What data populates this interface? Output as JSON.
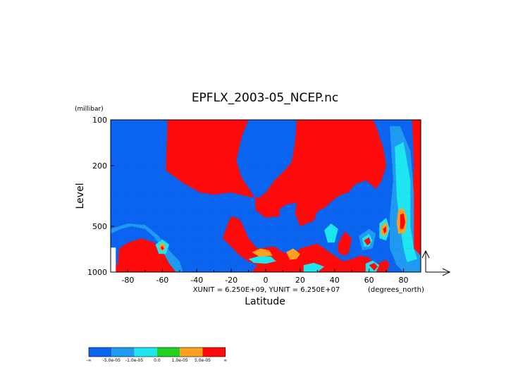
{
  "chart_data": {
    "type": "heatmap",
    "title": "EPFLX_2003-05_NCEP.nc",
    "xlabel": "Latitude",
    "ylabel": "Level",
    "y_unit_label": "(millibar)",
    "x_unit_label": "(degrees_north)",
    "scale_note": "XUNIT = 6.250E+09, YUNIT = 6.250E+07",
    "x_ticks": [
      -80,
      -60,
      -40,
      -20,
      0,
      20,
      40,
      60,
      80
    ],
    "x_tick_labels": [
      "-80",
      "-60",
      "-40",
      "-20",
      "0",
      "20",
      "40",
      "60",
      "80"
    ],
    "y_ticks": [
      100,
      200,
      500,
      1000
    ],
    "y_tick_labels": [
      "100",
      "200",
      "500",
      "1000"
    ],
    "xlim": [
      -90,
      90
    ],
    "ylim": [
      1000,
      100
    ],
    "y_scale": "log",
    "colors": {
      "dark_blue": "#0a64f0",
      "mid_blue": "#1e9bf0",
      "cyan": "#1ee6f0",
      "green": "#1ed21e",
      "orange": "#ffa01e",
      "red": "#ff0a0a"
    },
    "legend": {
      "placement": "bottom-left",
      "colors": [
        "#0a64f0",
        "#1e9bf0",
        "#1ee6f0",
        "#1ed21e",
        "#ffa01e",
        "#ff0a0a"
      ],
      "labels": [
        "-∞",
        "-5.0e-05",
        "-1.0e-05",
        "0.0",
        "1.0e-05",
        "5.0e-05",
        "∞"
      ]
    },
    "regions": [
      {
        "name": "red-main",
        "color": "red",
        "points": [
          [
            -57,
            100
          ],
          [
            -10,
            100
          ],
          [
            -14,
            130
          ],
          [
            -17,
            185
          ],
          [
            -14,
            240
          ],
          [
            -10,
            280
          ],
          [
            -6,
            330
          ],
          [
            -6,
            390
          ],
          [
            0,
            440
          ],
          [
            8,
            430
          ],
          [
            8,
            385
          ],
          [
            12,
            360
          ],
          [
            18,
            350
          ],
          [
            17,
            410
          ],
          [
            20,
            500
          ],
          [
            28,
            460
          ],
          [
            30,
            400
          ],
          [
            34,
            380
          ],
          [
            40,
            330
          ],
          [
            44,
            310
          ],
          [
            48,
            300
          ],
          [
            52,
            265
          ],
          [
            58,
            250
          ],
          [
            62,
            270
          ],
          [
            64,
            285
          ],
          [
            67,
            255
          ],
          [
            70,
            200
          ],
          [
            68,
            150
          ],
          [
            64,
            110
          ],
          [
            62,
            100
          ],
          [
            18,
            100
          ],
          [
            17,
            140
          ],
          [
            15,
            190
          ],
          [
            11,
            215
          ],
          [
            5,
            250
          ],
          [
            0,
            300
          ],
          [
            -4,
            325
          ],
          [
            -10,
            320
          ],
          [
            -20,
            300
          ],
          [
            -30,
            310
          ],
          [
            -38,
            300
          ],
          [
            -48,
            260
          ],
          [
            -58,
            215
          ]
        ]
      },
      {
        "name": "red-lower-middle",
        "color": "red",
        "points": [
          [
            -20,
            430
          ],
          [
            -15,
            450
          ],
          [
            -10,
            600
          ],
          [
            -5,
            700
          ],
          [
            5,
            680
          ],
          [
            8,
            720
          ],
          [
            15,
            780
          ],
          [
            20,
            700
          ],
          [
            30,
            650
          ],
          [
            40,
            780
          ],
          [
            45,
            850
          ],
          [
            50,
            820
          ],
          [
            55,
            780
          ],
          [
            60,
            800
          ],
          [
            62,
            850
          ],
          [
            65,
            880
          ],
          [
            70,
            830
          ],
          [
            72,
            900
          ],
          [
            70,
            1000
          ],
          [
            -8,
            1000
          ],
          [
            -5,
            900
          ],
          [
            -10,
            850
          ],
          [
            -15,
            780
          ],
          [
            -18,
            720
          ],
          [
            -25,
            600
          ],
          [
            -22,
            480
          ]
        ]
      },
      {
        "name": "red-lower-left",
        "color": "red",
        "points": [
          [
            -90,
            900
          ],
          [
            -86,
            900
          ],
          [
            -85,
            700
          ],
          [
            -80,
            640
          ],
          [
            -72,
            600
          ],
          [
            -65,
            640
          ],
          [
            -60,
            700
          ],
          [
            -56,
            850
          ],
          [
            -52,
            1000
          ],
          [
            -90,
            1000
          ]
        ]
      },
      {
        "name": "red-east-strip",
        "color": "red",
        "points": [
          [
            85,
            100
          ],
          [
            90,
            100
          ],
          [
            90,
            900
          ],
          [
            86,
            880
          ],
          [
            85,
            500
          ],
          [
            86,
            200
          ]
        ]
      },
      {
        "name": "red-blob-lat-48",
        "color": "red",
        "points": [
          [
            42,
            650
          ],
          [
            46,
            540
          ],
          [
            50,
            600
          ],
          [
            48,
            760
          ],
          [
            45,
            780
          ],
          [
            42,
            740
          ]
        ]
      },
      {
        "name": "red-blob-lat-80",
        "color": "red",
        "points": [
          [
            76,
            420
          ],
          [
            78,
            400
          ],
          [
            80,
            460
          ],
          [
            79,
            520
          ],
          [
            76,
            520
          ]
        ]
      },
      {
        "name": "red-blob-lat-58",
        "color": "red",
        "points": [
          [
            62,
            100
          ],
          [
            64,
            110
          ],
          [
            68,
            150
          ],
          [
            70,
            200
          ],
          [
            66,
            230
          ],
          [
            60,
            180
          ],
          [
            58,
            130
          ],
          [
            60,
            105
          ]
        ]
      },
      {
        "name": "orange-blob-lat-15",
        "color": "orange",
        "points": [
          [
            12,
            740
          ],
          [
            16,
            700
          ],
          [
            20,
            760
          ],
          [
            18,
            820
          ],
          [
            14,
            830
          ]
        ]
      },
      {
        "name": "cyan-blob-lat-0",
        "color": "cyan",
        "points": [
          [
            -10,
            820
          ],
          [
            -3,
            780
          ],
          [
            3,
            790
          ],
          [
            6,
            850
          ],
          [
            0,
            880
          ],
          [
            -7,
            870
          ]
        ]
      },
      {
        "name": "orange-blob-lat-0",
        "color": "orange",
        "points": [
          [
            -8,
            740
          ],
          [
            -3,
            700
          ],
          [
            2,
            720
          ],
          [
            4,
            780
          ],
          [
            -4,
            790
          ]
        ]
      },
      {
        "name": "cyan-blob-lat-25",
        "color": "cyan",
        "points": [
          [
            22,
            900
          ],
          [
            28,
            870
          ],
          [
            34,
            920
          ],
          [
            30,
            1000
          ],
          [
            22,
            1000
          ]
        ]
      },
      {
        "name": "cyan-blob-lat-37",
        "color": "cyan",
        "points": [
          [
            34,
            530
          ],
          [
            38,
            480
          ],
          [
            42,
            520
          ],
          [
            40,
            640
          ],
          [
            36,
            640
          ]
        ]
      },
      {
        "name": "mid-blue-lat-55",
        "color": "mid_blue",
        "points": [
          [
            54,
            580
          ],
          [
            60,
            520
          ],
          [
            64,
            560
          ],
          [
            62,
            700
          ],
          [
            56,
            720
          ]
        ]
      },
      {
        "name": "cyan-blob-lat-55",
        "color": "cyan",
        "points": [
          [
            56,
            600
          ],
          [
            60,
            560
          ],
          [
            62,
            620
          ],
          [
            60,
            680
          ],
          [
            57,
            680
          ]
        ]
      },
      {
        "name": "red-blob-lat-58-lower",
        "color": "red",
        "points": [
          [
            57,
            620
          ],
          [
            60,
            590
          ],
          [
            61,
            640
          ],
          [
            59,
            670
          ]
        ]
      },
      {
        "name": "mid-blue-east-column",
        "color": "mid_blue",
        "points": [
          [
            72,
            110
          ],
          [
            78,
            110
          ],
          [
            84,
            160
          ],
          [
            86,
            300
          ],
          [
            86,
            700
          ],
          [
            90,
            780
          ],
          [
            90,
            1000
          ],
          [
            80,
            1000
          ],
          [
            76,
            900
          ],
          [
            72,
            700
          ],
          [
            72,
            430
          ],
          [
            74,
            250
          ]
        ]
      },
      {
        "name": "cyan-east-column",
        "color": "cyan",
        "points": [
          [
            75,
            150
          ],
          [
            80,
            140
          ],
          [
            84,
            250
          ],
          [
            84,
            500
          ],
          [
            86,
            700
          ],
          [
            88,
            820
          ],
          [
            82,
            860
          ],
          [
            80,
            700
          ],
          [
            78,
            500
          ],
          [
            76,
            320
          ]
        ]
      },
      {
        "name": "orange-blob-lat-79",
        "color": "orange",
        "points": [
          [
            77,
            390
          ],
          [
            80,
            380
          ],
          [
            82,
            440
          ],
          [
            81,
            550
          ],
          [
            77,
            560
          ],
          [
            76,
            470
          ]
        ]
      },
      {
        "name": "red-blob-lat-79",
        "color": "red",
        "points": [
          [
            78,
            420
          ],
          [
            80,
            410
          ],
          [
            81,
            470
          ],
          [
            80,
            520
          ],
          [
            78,
            520
          ]
        ]
      },
      {
        "name": "cyan-blob-lat-68",
        "color": "cyan",
        "points": [
          [
            66,
            480
          ],
          [
            70,
            440
          ],
          [
            72,
            520
          ],
          [
            70,
            620
          ],
          [
            66,
            600
          ]
        ]
      },
      {
        "name": "orange-blob-lat-68",
        "color": "orange",
        "points": [
          [
            67,
            500
          ],
          [
            70,
            470
          ],
          [
            71,
            540
          ],
          [
            69,
            580
          ],
          [
            67,
            570
          ]
        ]
      },
      {
        "name": "red-blob-lat-68",
        "color": "red",
        "points": [
          [
            68,
            520
          ],
          [
            70,
            500
          ],
          [
            70,
            540
          ],
          [
            69,
            560
          ]
        ]
      },
      {
        "name": "cyan-blob-lat-60",
        "color": "cyan",
        "points": [
          [
            58,
            880
          ],
          [
            62,
            840
          ],
          [
            66,
            900
          ],
          [
            64,
            1000
          ],
          [
            58,
            1000
          ]
        ]
      },
      {
        "name": "red-blob-lat-62",
        "color": "red",
        "points": [
          [
            60,
            900
          ],
          [
            63,
            870
          ],
          [
            65,
            920
          ],
          [
            63,
            980
          ]
        ]
      },
      {
        "name": "mid-blue-left-strip",
        "color": "mid_blue",
        "points": [
          [
            -90,
            560
          ],
          [
            -84,
            520
          ],
          [
            -78,
            500
          ],
          [
            -70,
            520
          ],
          [
            -64,
            600
          ],
          [
            -60,
            720
          ],
          [
            -56,
            880
          ],
          [
            -52,
            1000
          ],
          [
            -48,
            1000
          ],
          [
            -50,
            850
          ],
          [
            -56,
            720
          ],
          [
            -62,
            580
          ],
          [
            -70,
            490
          ],
          [
            -80,
            480
          ],
          [
            -90,
            520
          ]
        ]
      },
      {
        "name": "cyan-blob-lat-61",
        "color": "cyan",
        "points": [
          [
            -64,
            660
          ],
          [
            -60,
            610
          ],
          [
            -56,
            660
          ],
          [
            -58,
            760
          ],
          [
            -62,
            760
          ]
        ]
      },
      {
        "name": "orange-blob-lat-61",
        "color": "orange",
        "points": [
          [
            -62,
            680
          ],
          [
            -60,
            640
          ],
          [
            -58,
            680
          ],
          [
            -60,
            740
          ]
        ]
      },
      {
        "name": "red-blob-lat-61",
        "color": "red",
        "points": [
          [
            -61,
            690
          ],
          [
            -60,
            670
          ],
          [
            -59,
            700
          ],
          [
            -60,
            720
          ]
        ]
      },
      {
        "name": "white-gap-lat-89",
        "color": "white",
        "points": [
          [
            -90,
            690
          ],
          [
            -87,
            690
          ],
          [
            -87,
            1000
          ],
          [
            -90,
            1000
          ]
        ]
      }
    ]
  }
}
